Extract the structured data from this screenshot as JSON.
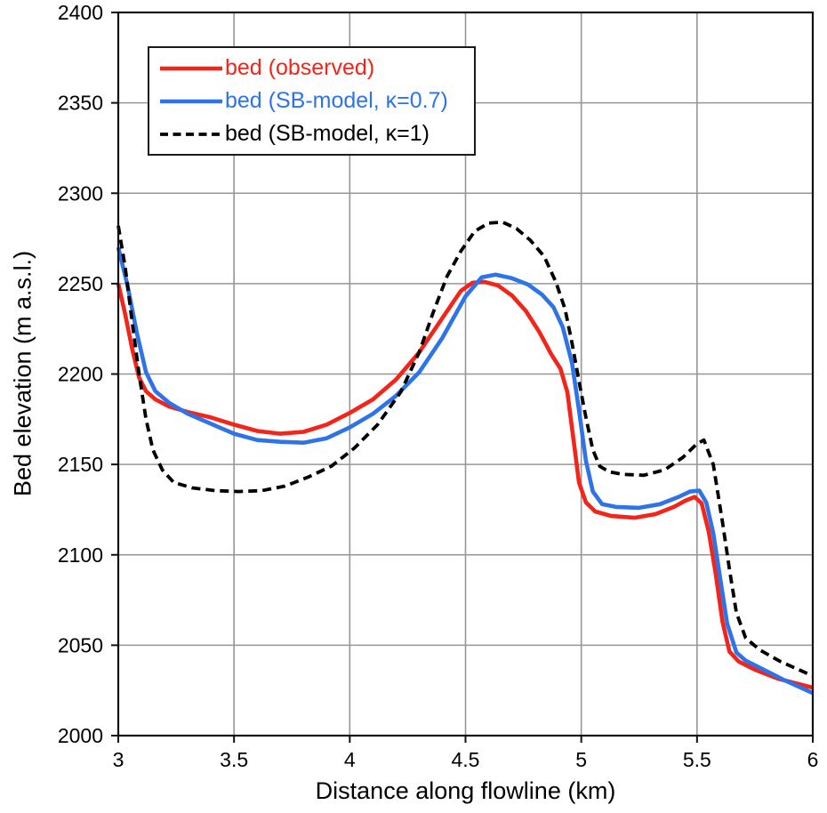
{
  "chart_data": {
    "type": "line",
    "title": "",
    "xlabel": "Distance along flowline (km)",
    "ylabel": "Bed elevation (m a.s.l.)",
    "xlim": [
      3,
      6
    ],
    "ylim": [
      2000,
      2400
    ],
    "xticks": [
      3,
      3.5,
      4,
      4.5,
      5,
      5.5,
      6
    ],
    "xtick_labels": [
      "3",
      "3.5",
      "4",
      "4.5",
      "5",
      "5.5",
      "6"
    ],
    "yticks": [
      2000,
      2050,
      2100,
      2150,
      2200,
      2250,
      2300,
      2350,
      2400
    ],
    "ytick_labels": [
      "2000",
      "2050",
      "2100",
      "2150",
      "2200",
      "2250",
      "2300",
      "2350",
      "2400"
    ],
    "grid": true,
    "grid_color": "#969696",
    "axis_color": "#111111",
    "legend_position": "upper-left",
    "series": [
      {
        "name": "bed-observed",
        "label": "bed (observed)",
        "color": "#f32419",
        "line_style": "solid",
        "points": [
          [
            3.0,
            2250
          ],
          [
            3.03,
            2233
          ],
          [
            3.06,
            2214
          ],
          [
            3.09,
            2198
          ],
          [
            3.12,
            2190.5
          ],
          [
            3.16,
            2186
          ],
          [
            3.22,
            2182
          ],
          [
            3.3,
            2179
          ],
          [
            3.4,
            2176
          ],
          [
            3.5,
            2172
          ],
          [
            3.6,
            2168.5
          ],
          [
            3.7,
            2167
          ],
          [
            3.8,
            2168
          ],
          [
            3.9,
            2172
          ],
          [
            4.0,
            2178.5
          ],
          [
            4.1,
            2186
          ],
          [
            4.2,
            2197
          ],
          [
            4.3,
            2212
          ],
          [
            4.4,
            2231
          ],
          [
            4.48,
            2246
          ],
          [
            4.53,
            2250.5
          ],
          [
            4.58,
            2251
          ],
          [
            4.64,
            2249
          ],
          [
            4.7,
            2243.5
          ],
          [
            4.76,
            2235
          ],
          [
            4.82,
            2223
          ],
          [
            4.87,
            2211
          ],
          [
            4.91,
            2203
          ],
          [
            4.94,
            2190
          ],
          [
            4.965,
            2165
          ],
          [
            4.99,
            2140
          ],
          [
            5.02,
            2129
          ],
          [
            5.06,
            2124
          ],
          [
            5.13,
            2121.5
          ],
          [
            5.23,
            2120.5
          ],
          [
            5.32,
            2122.5
          ],
          [
            5.4,
            2126.5
          ],
          [
            5.45,
            2130
          ],
          [
            5.49,
            2132
          ],
          [
            5.52,
            2128.5
          ],
          [
            5.55,
            2113
          ],
          [
            5.58,
            2090
          ],
          [
            5.61,
            2063
          ],
          [
            5.64,
            2046.5
          ],
          [
            5.68,
            2041
          ],
          [
            5.75,
            2036.5
          ],
          [
            5.85,
            2031.5
          ],
          [
            6.0,
            2026.5
          ]
        ]
      },
      {
        "name": "bed-sb-model-kappa-0-7",
        "label": "bed (SB-model, κ=0.7)",
        "color": "#2e74e8",
        "line_style": "solid",
        "points": [
          [
            3.0,
            2270
          ],
          [
            3.04,
            2249
          ],
          [
            3.08,
            2223
          ],
          [
            3.12,
            2201
          ],
          [
            3.16,
            2190.5
          ],
          [
            3.22,
            2184
          ],
          [
            3.3,
            2178
          ],
          [
            3.4,
            2172.5
          ],
          [
            3.5,
            2167
          ],
          [
            3.6,
            2163.5
          ],
          [
            3.7,
            2162.5
          ],
          [
            3.8,
            2162
          ],
          [
            3.9,
            2164.5
          ],
          [
            4.0,
            2170.5
          ],
          [
            4.1,
            2178
          ],
          [
            4.2,
            2188
          ],
          [
            4.3,
            2201
          ],
          [
            4.4,
            2220
          ],
          [
            4.5,
            2243
          ],
          [
            4.57,
            2253.5
          ],
          [
            4.63,
            2255
          ],
          [
            4.7,
            2253
          ],
          [
            4.77,
            2249.5
          ],
          [
            4.83,
            2244
          ],
          [
            4.88,
            2237
          ],
          [
            4.92,
            2226
          ],
          [
            4.96,
            2206
          ],
          [
            4.99,
            2180
          ],
          [
            5.02,
            2152
          ],
          [
            5.05,
            2135
          ],
          [
            5.09,
            2128
          ],
          [
            5.15,
            2126.5
          ],
          [
            5.25,
            2126
          ],
          [
            5.34,
            2128
          ],
          [
            5.42,
            2132
          ],
          [
            5.47,
            2135
          ],
          [
            5.51,
            2135.5
          ],
          [
            5.54,
            2129
          ],
          [
            5.57,
            2112
          ],
          [
            5.6,
            2087
          ],
          [
            5.63,
            2062
          ],
          [
            5.67,
            2046
          ],
          [
            5.71,
            2041.5
          ],
          [
            5.78,
            2037
          ],
          [
            5.88,
            2030.5
          ],
          [
            6.0,
            2023.5
          ]
        ]
      },
      {
        "name": "bed-sb-model-kappa-1",
        "label": "bed (SB-model, κ=1)",
        "color": "#000000",
        "line_style": "dashed",
        "points": [
          [
            3.0,
            2282
          ],
          [
            3.03,
            2259
          ],
          [
            3.06,
            2229
          ],
          [
            3.09,
            2200
          ],
          [
            3.12,
            2175
          ],
          [
            3.15,
            2158
          ],
          [
            3.19,
            2147
          ],
          [
            3.24,
            2140
          ],
          [
            3.32,
            2137
          ],
          [
            3.42,
            2135.5
          ],
          [
            3.52,
            2135
          ],
          [
            3.62,
            2135.5
          ],
          [
            3.72,
            2138
          ],
          [
            3.82,
            2143
          ],
          [
            3.92,
            2149
          ],
          [
            4.02,
            2159
          ],
          [
            4.12,
            2172
          ],
          [
            4.22,
            2190
          ],
          [
            4.3,
            2212
          ],
          [
            4.36,
            2234
          ],
          [
            4.42,
            2254
          ],
          [
            4.48,
            2268
          ],
          [
            4.54,
            2279
          ],
          [
            4.6,
            2283.5
          ],
          [
            4.66,
            2284
          ],
          [
            4.72,
            2280.5
          ],
          [
            4.78,
            2274
          ],
          [
            4.84,
            2265
          ],
          [
            4.89,
            2251
          ],
          [
            4.93,
            2236
          ],
          [
            4.96,
            2217
          ],
          [
            4.99,
            2196
          ],
          [
            5.02,
            2176
          ],
          [
            5.05,
            2158
          ],
          [
            5.08,
            2149
          ],
          [
            5.12,
            2146
          ],
          [
            5.18,
            2144.5
          ],
          [
            5.27,
            2144
          ],
          [
            5.36,
            2147
          ],
          [
            5.44,
            2154
          ],
          [
            5.5,
            2161.5
          ],
          [
            5.53,
            2163.5
          ],
          [
            5.57,
            2150
          ],
          [
            5.61,
            2118
          ],
          [
            5.64,
            2092
          ],
          [
            5.67,
            2068
          ],
          [
            5.71,
            2054
          ],
          [
            5.77,
            2047.5
          ],
          [
            5.86,
            2041
          ],
          [
            6.0,
            2033
          ]
        ]
      }
    ]
  }
}
